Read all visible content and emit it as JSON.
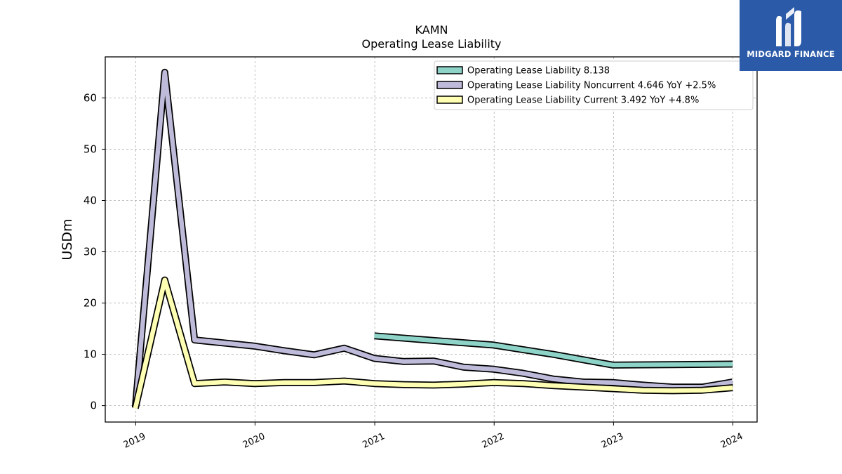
{
  "chart_data": {
    "type": "line",
    "title": "KAMN",
    "subtitle": "Operating Lease Liability",
    "ylabel": "USDm",
    "xlabel": "",
    "ylim": [
      -3.2,
      68
    ],
    "xlim": [
      "2018-09-30",
      "2024-03-15"
    ],
    "yticks": [
      0,
      10,
      20,
      30,
      40,
      50,
      60
    ],
    "xticks": [
      "2019",
      "2020",
      "2021",
      "2022",
      "2023",
      "2024"
    ],
    "grid": true,
    "legend_position": "top-right",
    "series": [
      {
        "name": "Operating Lease Liability",
        "legend_label": "Operating Lease Liability  8.138",
        "color": "#8dd3c7",
        "points": [
          [
            "2020-12-31",
            13.6
          ],
          [
            "2021-06-30",
            12.7
          ],
          [
            "2021-12-31",
            11.8
          ],
          [
            "2022-06-30",
            10.0
          ],
          [
            "2022-12-31",
            7.9
          ],
          [
            "2023-06-30",
            8.0
          ],
          [
            "2023-12-31",
            8.1
          ]
        ]
      },
      {
        "name": "Operating Lease Liability Noncurrent",
        "legend_label": "Operating Lease Liability Noncurrent  4.646 YoY +2.5%",
        "color": "#bebada",
        "points": [
          [
            "2018-12-31",
            -0.3
          ],
          [
            "2019-03-31",
            65.0
          ],
          [
            "2019-06-30",
            12.8
          ],
          [
            "2019-09-30",
            12.2
          ],
          [
            "2019-12-31",
            11.6
          ],
          [
            "2020-03-31",
            10.7
          ],
          [
            "2020-06-30",
            9.9
          ],
          [
            "2020-09-30",
            11.2
          ],
          [
            "2020-12-31",
            9.2
          ],
          [
            "2021-03-31",
            8.6
          ],
          [
            "2021-06-30",
            8.7
          ],
          [
            "2021-09-30",
            7.5
          ],
          [
            "2021-12-31",
            7.1
          ],
          [
            "2022-03-31",
            6.3
          ],
          [
            "2022-06-30",
            5.2
          ],
          [
            "2022-09-30",
            4.6
          ],
          [
            "2022-12-31",
            4.5
          ],
          [
            "2023-03-31",
            4.0
          ],
          [
            "2023-06-30",
            3.6
          ],
          [
            "2023-09-30",
            3.6
          ],
          [
            "2023-12-31",
            4.6
          ]
        ]
      },
      {
        "name": "Operating Lease Liability Current",
        "legend_label": "Operating Lease Liability Current  3.492 YoY +4.8%",
        "color": "#ffffb3",
        "points": [
          [
            "2018-12-31",
            -0.5
          ],
          [
            "2019-03-31",
            24.5
          ],
          [
            "2019-06-30",
            4.3
          ],
          [
            "2019-09-30",
            4.6
          ],
          [
            "2019-12-31",
            4.3
          ],
          [
            "2020-03-31",
            4.5
          ],
          [
            "2020-06-30",
            4.5
          ],
          [
            "2020-09-30",
            4.8
          ],
          [
            "2020-12-31",
            4.3
          ],
          [
            "2021-03-31",
            4.1
          ],
          [
            "2021-06-30",
            4.0
          ],
          [
            "2021-09-30",
            4.2
          ],
          [
            "2021-12-31",
            4.5
          ],
          [
            "2022-03-31",
            4.3
          ],
          [
            "2022-06-30",
            3.9
          ],
          [
            "2022-09-30",
            3.6
          ],
          [
            "2022-12-31",
            3.3
          ],
          [
            "2023-03-31",
            3.0
          ],
          [
            "2023-06-30",
            2.9
          ],
          [
            "2023-09-30",
            3.0
          ],
          [
            "2023-12-31",
            3.5
          ]
        ]
      }
    ]
  },
  "branding": {
    "logo_text": "MIDGARD FINANCE",
    "logo_color": "#2a5aa8",
    "logo_icon": "midgard-m-icon"
  }
}
